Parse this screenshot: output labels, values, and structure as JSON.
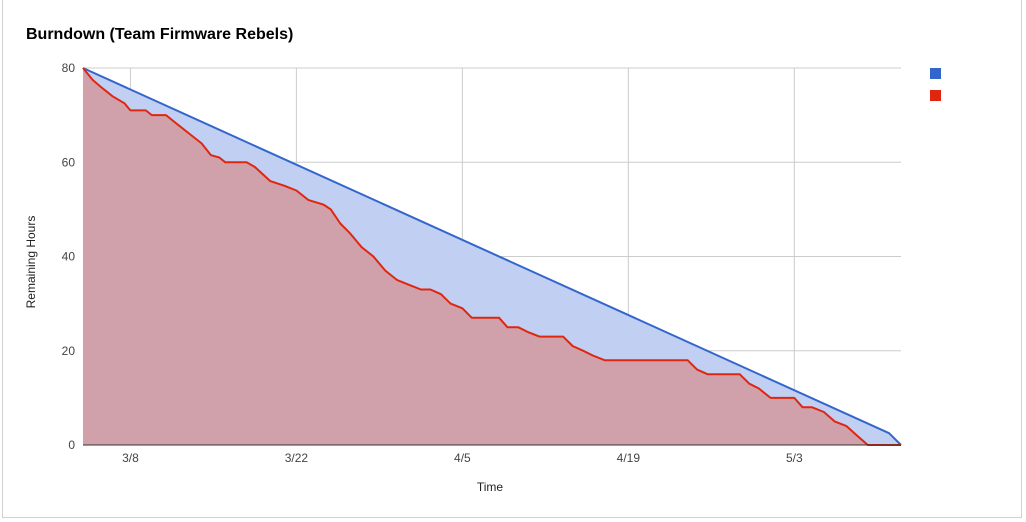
{
  "chart_data": {
    "type": "area",
    "title": "Burndown (Team Firmware Rebels)",
    "xlabel": "Time",
    "ylabel": "Remaining  Hours",
    "ylim": [
      0,
      80
    ],
    "yticks": [
      0,
      20,
      40,
      60,
      80
    ],
    "xticks": [
      {
        "label": "3/8",
        "day": 4
      },
      {
        "label": "3/22",
        "day": 18
      },
      {
        "label": "4/5",
        "day": 32
      },
      {
        "label": "4/19",
        "day": 46
      },
      {
        "label": "5/3",
        "day": 60
      }
    ],
    "xlim_days": [
      0,
      69
    ],
    "grid": true,
    "legend_position": "top-right",
    "series": [
      {
        "color": "#3366cc",
        "fill": "#c1d0f2",
        "points": [
          [
            0,
            80
          ],
          [
            68,
            2.5
          ],
          [
            69,
            0
          ]
        ]
      },
      {
        "color": "#e0260f",
        "fill": "#d0a1ab",
        "points": [
          [
            0,
            80
          ],
          [
            0.8,
            77.5
          ],
          [
            1.5,
            76
          ],
          [
            2.5,
            74
          ],
          [
            3.5,
            72.5
          ],
          [
            4,
            71
          ],
          [
            5.3,
            71
          ],
          [
            5.8,
            70
          ],
          [
            7,
            70
          ],
          [
            8,
            68
          ],
          [
            9,
            66
          ],
          [
            10,
            64
          ],
          [
            10.8,
            61.5
          ],
          [
            11.5,
            61
          ],
          [
            12,
            60
          ],
          [
            13.8,
            60
          ],
          [
            14.5,
            59
          ],
          [
            15.8,
            56
          ],
          [
            17,
            55
          ],
          [
            18,
            54
          ],
          [
            19,
            52
          ],
          [
            20.3,
            51
          ],
          [
            20.9,
            50
          ],
          [
            21.7,
            47
          ],
          [
            22.5,
            45
          ],
          [
            23.5,
            42
          ],
          [
            24.5,
            40
          ],
          [
            25.5,
            37
          ],
          [
            26.5,
            35
          ],
          [
            27.5,
            34
          ],
          [
            28.5,
            33
          ],
          [
            29.3,
            33
          ],
          [
            30.2,
            32
          ],
          [
            31,
            30
          ],
          [
            32,
            29
          ],
          [
            32.8,
            27
          ],
          [
            35.1,
            27
          ],
          [
            35.8,
            25
          ],
          [
            36.7,
            25
          ],
          [
            37.5,
            24
          ],
          [
            38.5,
            23
          ],
          [
            40.5,
            23
          ],
          [
            41.3,
            21
          ],
          [
            42.2,
            20
          ],
          [
            43,
            19
          ],
          [
            44,
            18
          ],
          [
            51,
            18
          ],
          [
            51.8,
            16
          ],
          [
            52.7,
            15
          ],
          [
            55.4,
            15
          ],
          [
            56.2,
            13
          ],
          [
            57,
            12
          ],
          [
            58,
            10
          ],
          [
            60,
            10
          ],
          [
            60.7,
            8
          ],
          [
            61.5,
            8
          ],
          [
            62.5,
            7
          ],
          [
            63.4,
            5
          ],
          [
            64.4,
            4
          ],
          [
            65.3,
            2
          ],
          [
            66.2,
            0
          ],
          [
            69,
            0
          ]
        ]
      }
    ]
  }
}
